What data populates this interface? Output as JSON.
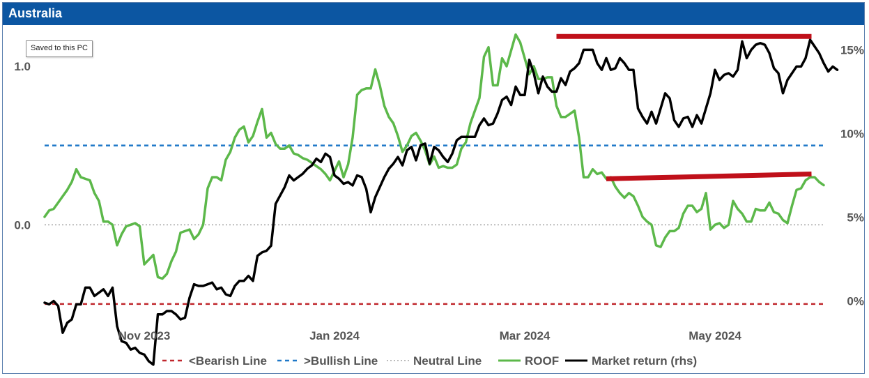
{
  "window": {
    "title": "Australia",
    "tooltip": "Saved to this PC"
  },
  "colors": {
    "title_bar": "#0c56a2",
    "roof": "#5cb84a",
    "market": "#000000",
    "bearish": "#c0272d",
    "bullish": "#1f78c8",
    "neutral": "#bbbbbb",
    "annotation": "#c0101a"
  },
  "chart_data": {
    "type": "line",
    "title": "Australia",
    "x_ticks": [
      "Nov 2023",
      "Jan 2024",
      "Mar 2024",
      "May 2024"
    ],
    "x_tick_index": [
      22,
      64,
      106,
      148
    ],
    "y_left": {
      "ticks": [
        "0.0",
        "1.0"
      ],
      "tick_values": [
        0.0,
        1.0
      ],
      "range": [
        -0.65,
        1.22
      ]
    },
    "y_right": {
      "ticks": [
        "0%",
        "5%",
        "10%",
        "15%"
      ],
      "tick_values": [
        0,
        5,
        10,
        15
      ],
      "range": [
        -1.6,
        16.1
      ]
    },
    "reference_lines": [
      {
        "name": "<Bearish Line",
        "value": -0.5,
        "style": "dashed",
        "color": "#c0272d",
        "axis": "left"
      },
      {
        "name": ">Bullish Line",
        "value": 0.5,
        "style": "dashed",
        "color": "#1f78c8",
        "axis": "left"
      },
      {
        "name": "Neutral Line",
        "value": 0.0,
        "style": "dotted",
        "color": "#bbbbbb",
        "axis": "left"
      }
    ],
    "series": [
      {
        "name": "ROOF",
        "axis": "left",
        "color": "#5cb84a",
        "values": [
          0.05,
          0.09,
          0.1,
          0.14,
          0.18,
          0.22,
          0.27,
          0.35,
          0.3,
          0.29,
          0.28,
          0.2,
          0.15,
          0.02,
          0.02,
          0.0,
          -0.13,
          -0.06,
          -0.01,
          0.0,
          0.01,
          -0.01,
          -0.25,
          -0.22,
          -0.19,
          -0.33,
          -0.34,
          -0.31,
          -0.23,
          -0.17,
          -0.05,
          -0.04,
          -0.03,
          -0.09,
          -0.06,
          0.0,
          0.23,
          0.3,
          0.3,
          0.28,
          0.41,
          0.46,
          0.55,
          0.6,
          0.62,
          0.52,
          0.56,
          0.65,
          0.73,
          0.55,
          0.58,
          0.51,
          0.48,
          0.48,
          0.5,
          0.45,
          0.44,
          0.42,
          0.41,
          0.39,
          0.37,
          0.35,
          0.32,
          0.28,
          0.34,
          0.4,
          0.3,
          0.38,
          0.55,
          0.82,
          0.85,
          0.86,
          0.86,
          0.98,
          0.88,
          0.75,
          0.68,
          0.64,
          0.56,
          0.46,
          0.5,
          0.56,
          0.58,
          0.53,
          0.47,
          0.38,
          0.43,
          0.36,
          0.37,
          0.36,
          0.36,
          0.38,
          0.48,
          0.52,
          0.64,
          0.72,
          0.8,
          1.06,
          1.12,
          0.88,
          0.88,
          1.05,
          1.0,
          1.1,
          1.2,
          1.15,
          1.05,
          0.95,
          1.0,
          0.92,
          0.92,
          0.93,
          0.93,
          0.75,
          0.68,
          0.68,
          0.7,
          0.72,
          0.55,
          0.3,
          0.3,
          0.35,
          0.32,
          0.33,
          0.29,
          0.3,
          0.24,
          0.2,
          0.17,
          0.2,
          0.18,
          0.12,
          0.05,
          0.02,
          0.0,
          -0.13,
          -0.14,
          -0.08,
          -0.04,
          -0.04,
          -0.02,
          0.07,
          0.12,
          0.12,
          0.08,
          0.1,
          0.2,
          -0.03,
          0.0,
          0.01,
          -0.02,
          0.0,
          0.15,
          0.1,
          0.07,
          0.02,
          0.02,
          0.1,
          0.09,
          0.09,
          0.14,
          0.08,
          0.07,
          0.03,
          0.01,
          0.12,
          0.22,
          0.23,
          0.28,
          0.3,
          0.3,
          0.27,
          0.25
        ]
      },
      {
        "name": "Market return (rhs)",
        "axis": "right",
        "color": "#000000",
        "values": [
          -0.1,
          -0.2,
          0.0,
          -0.3,
          -1.9,
          -1.3,
          -1.1,
          -0.2,
          -0.2,
          0.8,
          0.8,
          0.3,
          0.5,
          0.7,
          0.3,
          0.8,
          -1.5,
          -2.4,
          -2.5,
          -2.9,
          -2.8,
          -3.1,
          -3.2,
          -3.6,
          -3.8,
          -0.8,
          -0.8,
          -0.6,
          -0.6,
          -0.8,
          -1.1,
          -1.0,
          0.2,
          1.0,
          0.9,
          0.9,
          1.0,
          1.1,
          0.7,
          0.8,
          0.4,
          0.3,
          0.9,
          1.2,
          1.2,
          1.5,
          1.2,
          2.7,
          2.9,
          3.0,
          3.3,
          5.8,
          6.3,
          6.8,
          7.5,
          7.2,
          7.4,
          7.6,
          7.9,
          8.1,
          8.5,
          8.3,
          8.8,
          8.6,
          7.5,
          7.3,
          7.0,
          7.1,
          6.9,
          7.5,
          7.4,
          6.7,
          5.3,
          6.2,
          6.8,
          7.4,
          7.9,
          8.2,
          8.6,
          8.1,
          9.0,
          9.2,
          8.4,
          9.3,
          9.4,
          8.2,
          9.2,
          9.0,
          8.6,
          8.3,
          8.8,
          9.6,
          9.8,
          9.8,
          9.8,
          9.8,
          10.5,
          10.9,
          10.5,
          10.6,
          11.2,
          12.0,
          12.2,
          11.7,
          12.8,
          12.3,
          12.3,
          14.4,
          13.6,
          12.4,
          13.4,
          12.8,
          12.5,
          12.5,
          13.3,
          12.9,
          13.7,
          13.9,
          14.2,
          15.0,
          15.0,
          15.0,
          14.2,
          13.8,
          14.5,
          13.8,
          13.9,
          14.5,
          14.2,
          13.8,
          13.8,
          11.5,
          11.0,
          10.6,
          11.3,
          10.6,
          11.5,
          12.4,
          12.1,
          10.8,
          10.4,
          10.9,
          11.0,
          10.4,
          11.1,
          10.6,
          11.5,
          12.4,
          13.8,
          13.2,
          13.5,
          13.6,
          13.4,
          13.8,
          15.5,
          14.5,
          15.0,
          15.3,
          15.4,
          15.3,
          14.8,
          13.9,
          13.6,
          12.4,
          13.2,
          13.6,
          14.0,
          14.0,
          14.5,
          15.6,
          15.2,
          14.8,
          14.2,
          13.7,
          14.0,
          13.8
        ]
      }
    ],
    "legend": [
      "<Bearish Line",
      ">Bullish Line",
      "Neutral Line",
      "ROOF",
      "Market return (rhs)"
    ],
    "legend_position": "bottom",
    "annotations": [
      {
        "type": "resistance-line",
        "axis": "right",
        "from_index": 113,
        "to_index": 169,
        "value": 15.8
      },
      {
        "type": "resistance-line",
        "axis": "left",
        "from_index": 124,
        "to_index": 169,
        "values": [
          0.29,
          0.32
        ]
      }
    ],
    "grid": false
  }
}
